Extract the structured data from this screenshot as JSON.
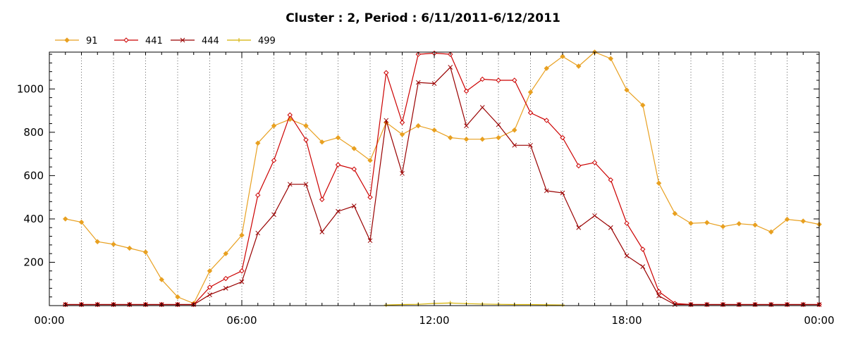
{
  "chart_data": {
    "type": "line",
    "title": "Cluster : 2, Period : 6/11/2011-6/12/2011",
    "xlabel": "",
    "ylabel": "",
    "x_ticks": [
      "00:00",
      "06:00",
      "12:00",
      "18:00",
      "00:00"
    ],
    "y_ticks": [
      200,
      400,
      600,
      800,
      1000
    ],
    "xlim": [
      0,
      24
    ],
    "ylim": [
      0,
      1170
    ],
    "grid": true,
    "legend_position": "top-left",
    "series": [
      {
        "name": "91",
        "color": "#e8a020",
        "marker": "diamond",
        "x": [
          0.5,
          1,
          1.5,
          2,
          2.5,
          3,
          3.5,
          4,
          4.5,
          5,
          5.5,
          6,
          6.5,
          7,
          7.5,
          8,
          8.5,
          9,
          9.5,
          10,
          10.5,
          11,
          11.5,
          12,
          12.5,
          13,
          13.5,
          14,
          14.5,
          15,
          15.5,
          16,
          16.5,
          17,
          17.5,
          18,
          18.5,
          19,
          19.5,
          20,
          20.5,
          21,
          21.5,
          22,
          22.5,
          23,
          23.5,
          24
        ],
        "values": [
          400,
          385,
          295,
          283,
          265,
          247,
          120,
          40,
          10,
          160,
          240,
          325,
          750,
          830,
          860,
          830,
          755,
          775,
          725,
          670,
          845,
          790,
          830,
          810,
          775,
          768,
          768,
          775,
          810,
          985,
          1095,
          1150,
          1105,
          1170,
          1140,
          995,
          925,
          565,
          425,
          380,
          383,
          365,
          378,
          372,
          340,
          398,
          390,
          375
        ]
      },
      {
        "name": "441",
        "color": "#cc0000",
        "marker": "diamond-open",
        "x": [
          0.5,
          1,
          1.5,
          2,
          2.5,
          3,
          3.5,
          4,
          4.5,
          5,
          5.5,
          6,
          6.5,
          7,
          7.5,
          8,
          8.5,
          9,
          9.5,
          10,
          10.5,
          11,
          11.5,
          12,
          12.5,
          13,
          13.5,
          14,
          14.5,
          15,
          15.5,
          16,
          16.5,
          17,
          17.5,
          18,
          18.5,
          19,
          19.5,
          20,
          20.5,
          21,
          21.5,
          22,
          22.5,
          23,
          23.5,
          24
        ],
        "values": [
          5,
          5,
          5,
          5,
          5,
          5,
          5,
          5,
          5,
          85,
          125,
          160,
          510,
          670,
          880,
          765,
          490,
          650,
          630,
          500,
          1075,
          845,
          1160,
          1165,
          1160,
          990,
          1045,
          1040,
          1040,
          890,
          855,
          775,
          645,
          660,
          580,
          380,
          260,
          65,
          10,
          5,
          5,
          5,
          5,
          5,
          5,
          5,
          5,
          5
        ]
      },
      {
        "name": "444",
        "color": "#990000",
        "marker": "x",
        "x": [
          0.5,
          1,
          1.5,
          2,
          2.5,
          3,
          3.5,
          4,
          4.5,
          5,
          5.5,
          6,
          6.5,
          7,
          7.5,
          8,
          8.5,
          9,
          9.5,
          10,
          10.5,
          11,
          11.5,
          12,
          12.5,
          13,
          13.5,
          14,
          14.5,
          15,
          15.5,
          16,
          16.5,
          17,
          17.5,
          18,
          18.5,
          19,
          19.5,
          20,
          20.5,
          21,
          21.5,
          22,
          22.5,
          23,
          23.5,
          24
        ],
        "values": [
          5,
          5,
          5,
          5,
          5,
          5,
          5,
          5,
          5,
          50,
          80,
          110,
          335,
          420,
          560,
          560,
          340,
          435,
          460,
          300,
          855,
          610,
          1030,
          1025,
          1100,
          830,
          915,
          835,
          740,
          740,
          530,
          520,
          360,
          415,
          360,
          230,
          180,
          45,
          5,
          5,
          5,
          5,
          5,
          5,
          5,
          5,
          5,
          5
        ]
      },
      {
        "name": "499",
        "color": "#d4b000",
        "marker": "plus",
        "x": [
          10.5,
          11,
          11.5,
          12,
          12.5,
          13,
          13.5,
          14,
          14.5,
          15,
          15.5,
          16
        ],
        "values": [
          3,
          5,
          6,
          10,
          12,
          9,
          7,
          6,
          5,
          5,
          4,
          3
        ]
      }
    ]
  }
}
